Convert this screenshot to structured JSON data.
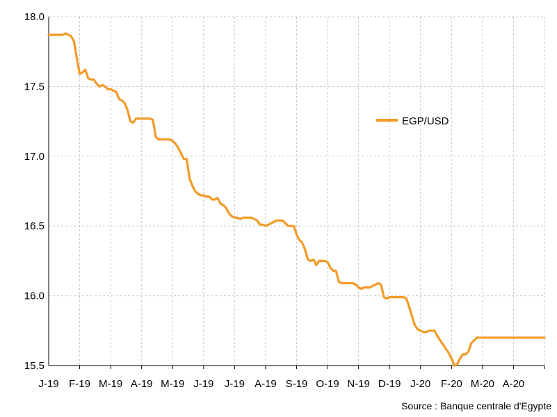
{
  "chart_data": {
    "type": "line",
    "x_tick_labels": [
      "J-19",
      "F-19",
      "M-19",
      "A-19",
      "M-19",
      "J-19",
      "J-19",
      "A-19",
      "S-19",
      "O-19",
      "N-19",
      "D-19",
      "J-20",
      "F-20",
      "M-20",
      "A-20"
    ],
    "y_tick_labels": [
      "15.5",
      "16.0",
      "16.5",
      "17.0",
      "17.5",
      "18.0"
    ],
    "ylim": [
      15.5,
      18.0
    ],
    "grid": true,
    "legend_position": "right",
    "source": "Source : Banque centrale d'Egypte",
    "series": [
      {
        "name": "EGP/USD",
        "color": "#F39A27",
        "points": [
          [
            0,
            17.87
          ],
          [
            3,
            17.87
          ],
          [
            5,
            17.87
          ],
          [
            6,
            17.88
          ],
          [
            7,
            17.87
          ],
          [
            8,
            17.86
          ],
          [
            9,
            17.82
          ],
          [
            10,
            17.7
          ],
          [
            11,
            17.59
          ],
          [
            12,
            17.6
          ],
          [
            13,
            17.62
          ],
          [
            14,
            17.56
          ],
          [
            15,
            17.55
          ],
          [
            16,
            17.55
          ],
          [
            17,
            17.52
          ],
          [
            18,
            17.5
          ],
          [
            19,
            17.51
          ],
          [
            20,
            17.5
          ],
          [
            21,
            17.48
          ],
          [
            22,
            17.48
          ],
          [
            23,
            17.47
          ],
          [
            24,
            17.46
          ],
          [
            25,
            17.41
          ],
          [
            26,
            17.4
          ],
          [
            27,
            17.38
          ],
          [
            28,
            17.33
          ],
          [
            29,
            17.25
          ],
          [
            30,
            17.24
          ],
          [
            31,
            17.27
          ],
          [
            32,
            17.27
          ],
          [
            33,
            17.27
          ],
          [
            34,
            17.27
          ],
          [
            35,
            17.27
          ],
          [
            36,
            17.27
          ],
          [
            37,
            17.26
          ],
          [
            38,
            17.14
          ],
          [
            39,
            17.12
          ],
          [
            40,
            17.12
          ],
          [
            42,
            17.12
          ],
          [
            43,
            17.12
          ],
          [
            44,
            17.11
          ],
          [
            45,
            17.09
          ],
          [
            46,
            17.06
          ],
          [
            47,
            17.02
          ],
          [
            48,
            16.98
          ],
          [
            49,
            16.98
          ],
          [
            50,
            16.84
          ],
          [
            51,
            16.79
          ],
          [
            52,
            16.75
          ],
          [
            53,
            16.73
          ],
          [
            54,
            16.72
          ],
          [
            55,
            16.72
          ],
          [
            56,
            16.71
          ],
          [
            57,
            16.71
          ],
          [
            58,
            16.69
          ],
          [
            59,
            16.69
          ],
          [
            60,
            16.7
          ],
          [
            61,
            16.66
          ],
          [
            62,
            16.65
          ],
          [
            63,
            16.63
          ],
          [
            64,
            16.59
          ],
          [
            65,
            16.57
          ],
          [
            66,
            16.56
          ],
          [
            67,
            16.56
          ],
          [
            68,
            16.55
          ],
          [
            69,
            16.56
          ],
          [
            70,
            16.56
          ],
          [
            71,
            16.56
          ],
          [
            72,
            16.56
          ],
          [
            73,
            16.55
          ],
          [
            74,
            16.54
          ],
          [
            75,
            16.51
          ],
          [
            76,
            16.51
          ],
          [
            77,
            16.5
          ],
          [
            78,
            16.51
          ],
          [
            79,
            16.52
          ],
          [
            80,
            16.53
          ],
          [
            81,
            16.54
          ],
          [
            82,
            16.54
          ],
          [
            83,
            16.54
          ],
          [
            84,
            16.52
          ],
          [
            85,
            16.5
          ],
          [
            86,
            16.5
          ],
          [
            87,
            16.5
          ],
          [
            88,
            16.44
          ],
          [
            89,
            16.4
          ],
          [
            90,
            16.38
          ],
          [
            91,
            16.33
          ],
          [
            92,
            16.26
          ],
          [
            93,
            16.25
          ],
          [
            94,
            16.26
          ],
          [
            95,
            16.22
          ],
          [
            96,
            16.25
          ],
          [
            97,
            16.25
          ],
          [
            98,
            16.25
          ],
          [
            99,
            16.24
          ],
          [
            100,
            16.2
          ],
          [
            101,
            16.18
          ],
          [
            102,
            16.18
          ],
          [
            103,
            16.1
          ],
          [
            104,
            16.09
          ],
          [
            105,
            16.09
          ],
          [
            106,
            16.09
          ],
          [
            107,
            16.09
          ],
          [
            108,
            16.09
          ],
          [
            109,
            16.08
          ],
          [
            110,
            16.06
          ],
          [
            111,
            16.05
          ],
          [
            112,
            16.06
          ],
          [
            113,
            16.06
          ],
          [
            114,
            16.06
          ],
          [
            115,
            16.07
          ],
          [
            116,
            16.08
          ],
          [
            117,
            16.09
          ],
          [
            118,
            16.08
          ],
          [
            119,
            15.99
          ],
          [
            120,
            15.98
          ],
          [
            121,
            15.99
          ],
          [
            122,
            15.99
          ],
          [
            123,
            15.99
          ],
          [
            124,
            15.99
          ],
          [
            125,
            15.99
          ],
          [
            126,
            15.99
          ],
          [
            127,
            15.98
          ],
          [
            128,
            15.92
          ],
          [
            129,
            15.85
          ],
          [
            130,
            15.79
          ],
          [
            131,
            15.76
          ],
          [
            132,
            15.75
          ],
          [
            133,
            15.74
          ],
          [
            134,
            15.74
          ],
          [
            135,
            15.75
          ],
          [
            136,
            15.75
          ],
          [
            137,
            15.75
          ],
          [
            138,
            15.71
          ],
          [
            139,
            15.68
          ],
          [
            140,
            15.65
          ],
          [
            141,
            15.62
          ],
          [
            142,
            15.59
          ],
          [
            143,
            15.55
          ],
          [
            144,
            15.5
          ],
          [
            145,
            15.51
          ],
          [
            146,
            15.55
          ],
          [
            147,
            15.58
          ],
          [
            148,
            15.58
          ],
          [
            149,
            15.6
          ],
          [
            150,
            15.66
          ],
          [
            151,
            15.68
          ],
          [
            152,
            15.7
          ],
          [
            160,
            15.7
          ],
          [
            175,
            15.7
          ],
          [
            176,
            15.7
          ]
        ]
      }
    ]
  }
}
